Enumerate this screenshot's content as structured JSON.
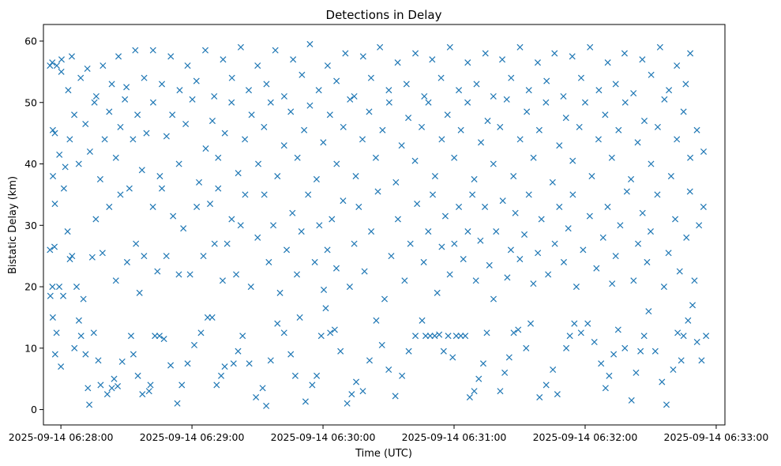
{
  "chart_data": {
    "type": "scatter",
    "title": "Detections in Delay",
    "xlabel": "Time (UTC)",
    "ylabel": "Bistatic Delay (km)",
    "marker": "x",
    "color": "#1f77b4",
    "grid": false,
    "xlim": [
      "2025-09-14 06:27:52",
      "2025-09-14 06:33:04"
    ],
    "ylim": [
      -2.5,
      62.7
    ],
    "x_ticks": [
      "2025-09-14 06:28:00",
      "2025-09-14 06:29:00",
      "2025-09-14 06:30:00",
      "2025-09-14 06:31:00",
      "2025-09-14 06:32:00",
      "2025-09-14 06:33:00"
    ],
    "y_ticks": [
      0,
      10,
      20,
      30,
      40,
      50,
      60
    ],
    "x_start": "2025-09-14 06:27:55",
    "x_end": "2025-09-14 06:32:55",
    "points": [
      [
        0,
        56
      ],
      [
        1,
        56.5
      ],
      [
        3,
        56
      ],
      [
        5,
        55
      ],
      [
        2,
        45
      ],
      [
        1,
        45.5
      ],
      [
        1,
        38
      ],
      [
        0,
        26
      ],
      [
        2,
        26.5
      ],
      [
        1,
        20
      ],
      [
        0,
        18.5
      ],
      [
        4,
        20
      ],
      [
        1,
        15
      ],
      [
        2,
        9
      ],
      [
        5,
        7
      ],
      [
        8,
        29
      ],
      [
        10,
        25
      ],
      [
        12,
        20
      ],
      [
        14,
        12
      ],
      [
        16,
        9
      ],
      [
        17,
        3.5
      ],
      [
        18,
        0.8
      ],
      [
        20,
        12.5
      ],
      [
        22,
        8
      ],
      [
        23,
        4
      ],
      [
        26,
        2.5
      ],
      [
        28,
        3.5
      ],
      [
        29,
        5
      ],
      [
        31,
        3.8
      ],
      [
        33,
        7.8
      ],
      [
        37,
        12
      ],
      [
        38,
        9
      ],
      [
        40,
        5.5
      ],
      [
        42,
        2.5
      ],
      [
        45,
        3
      ],
      [
        46,
        4
      ],
      [
        48,
        12
      ],
      [
        50,
        12
      ],
      [
        52,
        11.5
      ],
      [
        55,
        7.2
      ],
      [
        58,
        1
      ],
      [
        60,
        4
      ],
      [
        63,
        7.5
      ],
      [
        66,
        10.5
      ],
      [
        69,
        12.5
      ],
      [
        72,
        15
      ],
      [
        74,
        15
      ],
      [
        76,
        4
      ],
      [
        78,
        5.5
      ],
      [
        80,
        7
      ],
      [
        84,
        7.5
      ],
      [
        86,
        9.5
      ],
      [
        88,
        12
      ],
      [
        91,
        7.5
      ],
      [
        94,
        2
      ],
      [
        97,
        3.5
      ],
      [
        99,
        0.6
      ],
      [
        101,
        8
      ],
      [
        104,
        14
      ],
      [
        107,
        12.5
      ],
      [
        110,
        9
      ],
      [
        112,
        5.5
      ],
      [
        114,
        15
      ],
      [
        117,
        1.3
      ],
      [
        120,
        4
      ],
      [
        122,
        5.5
      ],
      [
        124,
        12
      ],
      [
        126,
        16.5
      ],
      [
        128,
        12.5
      ],
      [
        130,
        13
      ],
      [
        133,
        9.5
      ],
      [
        136,
        1
      ],
      [
        138,
        2.5
      ],
      [
        140,
        4.5
      ],
      [
        143,
        3
      ],
      [
        146,
        8
      ],
      [
        149,
        14.5
      ],
      [
        152,
        10.5
      ],
      [
        155,
        6.5
      ],
      [
        158,
        2.2
      ],
      [
        161,
        5.5
      ],
      [
        164,
        9.5
      ],
      [
        167,
        12
      ],
      [
        170,
        14.5
      ],
      [
        172,
        12
      ],
      [
        174,
        12
      ],
      [
        176,
        12
      ],
      [
        178,
        12.2
      ],
      [
        180,
        9.5
      ],
      [
        182,
        12
      ],
      [
        184,
        8.5
      ],
      [
        186,
        12
      ],
      [
        188,
        12
      ],
      [
        190,
        12
      ],
      [
        192,
        2
      ],
      [
        194,
        3
      ],
      [
        196,
        5
      ],
      [
        198,
        7.5
      ],
      [
        200,
        12.5
      ],
      [
        203,
        18
      ],
      [
        206,
        3
      ],
      [
        208,
        6
      ],
      [
        210,
        8.5
      ],
      [
        212,
        12.5
      ],
      [
        214,
        13
      ],
      [
        218,
        10
      ],
      [
        220,
        14
      ],
      [
        224,
        2
      ],
      [
        227,
        4
      ],
      [
        230,
        6.5
      ],
      [
        232,
        2.5
      ],
      [
        236,
        10
      ],
      [
        238,
        12
      ],
      [
        240,
        14
      ],
      [
        243,
        12.5
      ],
      [
        246,
        14
      ],
      [
        249,
        11
      ],
      [
        252,
        7.5
      ],
      [
        254,
        3.5
      ],
      [
        256,
        5.5
      ],
      [
        258,
        9
      ],
      [
        260,
        13
      ],
      [
        263,
        10
      ],
      [
        266,
        1.5
      ],
      [
        268,
        6
      ],
      [
        270,
        9.5
      ],
      [
        272,
        12
      ],
      [
        274,
        16
      ],
      [
        277,
        9.5
      ],
      [
        280,
        4.5
      ],
      [
        282,
        0.8
      ],
      [
        285,
        6.5
      ],
      [
        287,
        12.5
      ],
      [
        289,
        8
      ],
      [
        290,
        12
      ],
      [
        292,
        14.5
      ],
      [
        294,
        17
      ],
      [
        296,
        11
      ],
      [
        298,
        8
      ],
      [
        300,
        12
      ],
      [
        3,
        12.5
      ],
      [
        6,
        18.5
      ],
      [
        9,
        24.5
      ],
      [
        11,
        10
      ],
      [
        13,
        14.5
      ],
      [
        15,
        18
      ],
      [
        19,
        24.8
      ],
      [
        21,
        31
      ],
      [
        24,
        25.5
      ],
      [
        27,
        33
      ],
      [
        30,
        21
      ],
      [
        32,
        35
      ],
      [
        35,
        24
      ],
      [
        39,
        27
      ],
      [
        41,
        19
      ],
      [
        43,
        25
      ],
      [
        47,
        33
      ],
      [
        49,
        22.5
      ],
      [
        51,
        36
      ],
      [
        53,
        25
      ],
      [
        56,
        31.5
      ],
      [
        59,
        22
      ],
      [
        61,
        29.5
      ],
      [
        64,
        22
      ],
      [
        67,
        33
      ],
      [
        70,
        25
      ],
      [
        73,
        33.5
      ],
      [
        75,
        27
      ],
      [
        77,
        36
      ],
      [
        79,
        21
      ],
      [
        81,
        27
      ],
      [
        83,
        31
      ],
      [
        85,
        22
      ],
      [
        87,
        30
      ],
      [
        89,
        35
      ],
      [
        92,
        20
      ],
      [
        95,
        28
      ],
      [
        98,
        35
      ],
      [
        100,
        24
      ],
      [
        102,
        30
      ],
      [
        105,
        19
      ],
      [
        108,
        26
      ],
      [
        111,
        32
      ],
      [
        113,
        22
      ],
      [
        115,
        29
      ],
      [
        118,
        35
      ],
      [
        121,
        24
      ],
      [
        123,
        30
      ],
      [
        125,
        19.5
      ],
      [
        127,
        26
      ],
      [
        129,
        31
      ],
      [
        131,
        23
      ],
      [
        134,
        34
      ],
      [
        137,
        20
      ],
      [
        139,
        27
      ],
      [
        141,
        33
      ],
      [
        144,
        22.5
      ],
      [
        147,
        29
      ],
      [
        150,
        35.5
      ],
      [
        153,
        18
      ],
      [
        156,
        25
      ],
      [
        159,
        31
      ],
      [
        162,
        21
      ],
      [
        165,
        27
      ],
      [
        168,
        33.5
      ],
      [
        171,
        24
      ],
      [
        173,
        29
      ],
      [
        175,
        35
      ],
      [
        177,
        19
      ],
      [
        179,
        26.5
      ],
      [
        181,
        31.5
      ],
      [
        183,
        22
      ],
      [
        185,
        27
      ],
      [
        187,
        33
      ],
      [
        189,
        24.5
      ],
      [
        191,
        29
      ],
      [
        193,
        35
      ],
      [
        195,
        21
      ],
      [
        197,
        27.5
      ],
      [
        199,
        33
      ],
      [
        201,
        23.5
      ],
      [
        204,
        29
      ],
      [
        207,
        34
      ],
      [
        209,
        21.5
      ],
      [
        211,
        26
      ],
      [
        213,
        32
      ],
      [
        215,
        24.5
      ],
      [
        217,
        28.5
      ],
      [
        219,
        35
      ],
      [
        221,
        20.5
      ],
      [
        223,
        25.5
      ],
      [
        225,
        31
      ],
      [
        228,
        22
      ],
      [
        231,
        27
      ],
      [
        233,
        33
      ],
      [
        235,
        24
      ],
      [
        237,
        29.5
      ],
      [
        239,
        35
      ],
      [
        241,
        20
      ],
      [
        244,
        26
      ],
      [
        247,
        31.5
      ],
      [
        250,
        23
      ],
      [
        253,
        28
      ],
      [
        255,
        33
      ],
      [
        257,
        20.5
      ],
      [
        259,
        25
      ],
      [
        261,
        30
      ],
      [
        264,
        35.5
      ],
      [
        267,
        21
      ],
      [
        269,
        27
      ],
      [
        271,
        32
      ],
      [
        273,
        24
      ],
      [
        275,
        29
      ],
      [
        278,
        35
      ],
      [
        281,
        20
      ],
      [
        283,
        25.5
      ],
      [
        286,
        31
      ],
      [
        288,
        22.5
      ],
      [
        291,
        28
      ],
      [
        293,
        35.5
      ],
      [
        295,
        21
      ],
      [
        297,
        30
      ],
      [
        299,
        33
      ],
      [
        2,
        33.5
      ],
      [
        4,
        41.5
      ],
      [
        6,
        36
      ],
      [
        7,
        39.5
      ],
      [
        9,
        44
      ],
      [
        11,
        48
      ],
      [
        13,
        40
      ],
      [
        16,
        46.5
      ],
      [
        18,
        42
      ],
      [
        20,
        50
      ],
      [
        23,
        37.5
      ],
      [
        25,
        44
      ],
      [
        27,
        48.5
      ],
      [
        30,
        41
      ],
      [
        32,
        46
      ],
      [
        34,
        50.5
      ],
      [
        36,
        36
      ],
      [
        38,
        44
      ],
      [
        40,
        48
      ],
      [
        42,
        39
      ],
      [
        44,
        45
      ],
      [
        47,
        50
      ],
      [
        50,
        38
      ],
      [
        53,
        44.5
      ],
      [
        56,
        48
      ],
      [
        59,
        40
      ],
      [
        62,
        46.5
      ],
      [
        65,
        50.5
      ],
      [
        68,
        37
      ],
      [
        71,
        42.5
      ],
      [
        74,
        47
      ],
      [
        77,
        41
      ],
      [
        80,
        45
      ],
      [
        83,
        50
      ],
      [
        86,
        38.5
      ],
      [
        89,
        44
      ],
      [
        92,
        48
      ],
      [
        95,
        40
      ],
      [
        98,
        46
      ],
      [
        101,
        50
      ],
      [
        104,
        38
      ],
      [
        107,
        43
      ],
      [
        110,
        48.5
      ],
      [
        113,
        41
      ],
      [
        116,
        45.5
      ],
      [
        119,
        49.5
      ],
      [
        122,
        37.5
      ],
      [
        125,
        43.5
      ],
      [
        128,
        48
      ],
      [
        131,
        40
      ],
      [
        134,
        46
      ],
      [
        137,
        50.5
      ],
      [
        140,
        38
      ],
      [
        143,
        44
      ],
      [
        146,
        48.5
      ],
      [
        149,
        41
      ],
      [
        152,
        45.5
      ],
      [
        155,
        50
      ],
      [
        158,
        37
      ],
      [
        161,
        43
      ],
      [
        164,
        47.5
      ],
      [
        167,
        40.5
      ],
      [
        170,
        46
      ],
      [
        173,
        50
      ],
      [
        176,
        38
      ],
      [
        179,
        44
      ],
      [
        182,
        48
      ],
      [
        185,
        41
      ],
      [
        188,
        45.5
      ],
      [
        191,
        50
      ],
      [
        194,
        37.5
      ],
      [
        197,
        43.5
      ],
      [
        200,
        47
      ],
      [
        203,
        40
      ],
      [
        206,
        46
      ],
      [
        209,
        50.5
      ],
      [
        212,
        38
      ],
      [
        215,
        44
      ],
      [
        218,
        48.5
      ],
      [
        221,
        41
      ],
      [
        224,
        45.5
      ],
      [
        227,
        50
      ],
      [
        230,
        37
      ],
      [
        233,
        43
      ],
      [
        236,
        47.5
      ],
      [
        239,
        40.5
      ],
      [
        242,
        46
      ],
      [
        245,
        50
      ],
      [
        248,
        38
      ],
      [
        251,
        44
      ],
      [
        254,
        48
      ],
      [
        257,
        41
      ],
      [
        260,
        45.5
      ],
      [
        263,
        50
      ],
      [
        266,
        37.5
      ],
      [
        269,
        43.5
      ],
      [
        272,
        47
      ],
      [
        275,
        40
      ],
      [
        278,
        46
      ],
      [
        281,
        50.5
      ],
      [
        284,
        38
      ],
      [
        287,
        44
      ],
      [
        290,
        48.5
      ],
      [
        293,
        41
      ],
      [
        296,
        45.5
      ],
      [
        299,
        42
      ],
      [
        5,
        57
      ],
      [
        8,
        52
      ],
      [
        10,
        57.5
      ],
      [
        14,
        54
      ],
      [
        17,
        55.5
      ],
      [
        21,
        51
      ],
      [
        24,
        56
      ],
      [
        28,
        53
      ],
      [
        31,
        57.5
      ],
      [
        35,
        52.5
      ],
      [
        39,
        58.5
      ],
      [
        43,
        54
      ],
      [
        47,
        58.5
      ],
      [
        51,
        53
      ],
      [
        55,
        57.5
      ],
      [
        59,
        52
      ],
      [
        63,
        56
      ],
      [
        67,
        53.5
      ],
      [
        71,
        58.5
      ],
      [
        75,
        51
      ],
      [
        79,
        57
      ],
      [
        83,
        54
      ],
      [
        87,
        59
      ],
      [
        91,
        52
      ],
      [
        95,
        56
      ],
      [
        99,
        53
      ],
      [
        103,
        58.5
      ],
      [
        107,
        51
      ],
      [
        111,
        57
      ],
      [
        115,
        54.5
      ],
      [
        119,
        59.5
      ],
      [
        123,
        52
      ],
      [
        127,
        56
      ],
      [
        131,
        53.5
      ],
      [
        135,
        58
      ],
      [
        139,
        51
      ],
      [
        143,
        57.5
      ],
      [
        147,
        54
      ],
      [
        151,
        59
      ],
      [
        155,
        52
      ],
      [
        159,
        56.5
      ],
      [
        163,
        53
      ],
      [
        167,
        58
      ],
      [
        171,
        51
      ],
      [
        175,
        57
      ],
      [
        179,
        54
      ],
      [
        183,
        59
      ],
      [
        187,
        52
      ],
      [
        191,
        56.5
      ],
      [
        195,
        53
      ],
      [
        199,
        58
      ],
      [
        203,
        51
      ],
      [
        207,
        57
      ],
      [
        211,
        54
      ],
      [
        215,
        59
      ],
      [
        219,
        52
      ],
      [
        223,
        56.5
      ],
      [
        227,
        53.5
      ],
      [
        231,
        58
      ],
      [
        235,
        51
      ],
      [
        239,
        57.5
      ],
      [
        243,
        54
      ],
      [
        247,
        59
      ],
      [
        251,
        52
      ],
      [
        255,
        56.5
      ],
      [
        259,
        53
      ],
      [
        263,
        58
      ],
      [
        267,
        51.5
      ],
      [
        271,
        57
      ],
      [
        275,
        54.5
      ],
      [
        279,
        59
      ],
      [
        283,
        52
      ],
      [
        287,
        56
      ],
      [
        291,
        53
      ],
      [
        293,
        58
      ]
    ]
  }
}
